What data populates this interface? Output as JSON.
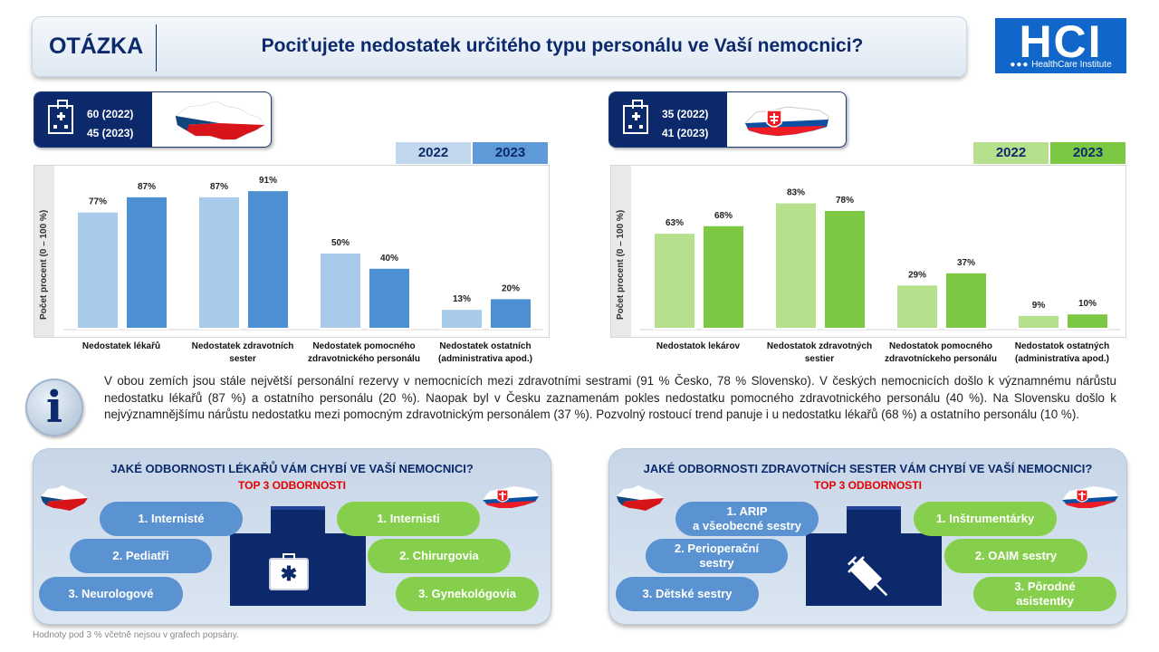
{
  "header": {
    "label": "OTÁZKA",
    "title": "Pociťujete nedostatek určitého typu personálu ve Vaší nemocnici?"
  },
  "logo": {
    "text": "HCI",
    "subtitle": "HealthCare Institute"
  },
  "cz": {
    "count_2022": "60 (2022)",
    "count_2023": "45 (2023)",
    "legend": [
      "2022",
      "2023"
    ],
    "colors": {
      "y2022": "#a8cbe9",
      "y2023": "#4c8fd3"
    }
  },
  "sk": {
    "count_2022": "35 (2022)",
    "count_2023": "41 (2023)",
    "legend": [
      "2022",
      "2023"
    ],
    "colors": {
      "y2022": "#b7e08d",
      "y2023": "#7dc843"
    }
  },
  "chart_data": [
    {
      "type": "bar",
      "ylabel": "Počet procent  (0 – 100 %)",
      "ylim": [
        0,
        100
      ],
      "categories": [
        "Nedostatek lékařů",
        "Nedostatek zdravotních sester",
        "Nedostatek pomocného zdravotnického personálu",
        "Nedostatek ostatních (administrativa apod.)"
      ],
      "category_lines": [
        [
          "Nedostatek lékařů"
        ],
        [
          "Nedostatek zdravotních",
          "sester"
        ],
        [
          "Nedostatek pomocného",
          "zdravotnického personálu"
        ],
        [
          "Nedostatek ostatních",
          "(administrativa apod.)"
        ]
      ],
      "series": [
        {
          "name": "2022",
          "values": [
            77,
            87,
            50,
            13
          ]
        },
        {
          "name": "2023",
          "values": [
            87,
            91,
            40,
            20
          ]
        }
      ],
      "labels": [
        [
          "77%",
          "87%",
          "50%",
          "13%"
        ],
        [
          "87%",
          "91%",
          "40%",
          "20%"
        ]
      ],
      "grid": false
    },
    {
      "type": "bar",
      "ylabel": "Počet procent  (0 – 100 %)",
      "ylim": [
        0,
        100
      ],
      "categories": [
        "Nedostatok lekárov",
        "Nedostatok zdravotných sestier",
        "Nedostatok pomocného zdravotníckeho personálu",
        "Nedostatok ostatných (administratíva apod.)"
      ],
      "category_lines": [
        [
          "Nedostatok lekárov"
        ],
        [
          "Nedostatok zdravotných",
          "sestier"
        ],
        [
          "Nedostatok pomocného",
          "zdravotníckeho personálu"
        ],
        [
          "Nedostatok ostatných",
          "(administratíva apod.)"
        ]
      ],
      "series": [
        {
          "name": "2022",
          "values": [
            63,
            83,
            29,
            9
          ]
        },
        {
          "name": "2023",
          "values": [
            68,
            78,
            37,
            10
          ]
        }
      ],
      "labels": [
        [
          "63%",
          "83%",
          "29%",
          "9%"
        ],
        [
          "68%",
          "78%",
          "37%",
          "10%"
        ]
      ],
      "grid": false
    }
  ],
  "info": {
    "icon": "i",
    "text": "V obou zemích jsou stále největší personální rezervy v nemocnicích mezi zdravotními sestrami (91 % Česko, 78 % Slovensko). V českých nemocnicích došlo k významnému nárůstu nedostatku lékařů (87 %) a ostatního personálu (20 %). Naopak byl v Česku zaznamenám pokles nedostatku pomocného zdravotnického personálu (40 %). Na Slovensku došlo k nejvýznamnějšímu nárůstu nedostatku mezi pomocným zdravotnickým personálem (37 %). Pozvolný rostoucí trend panuje i u nedostatku lékařů (68 %) a ostatního personálu (10 %)."
  },
  "doctors": {
    "title": "JAKÉ ODBORNOSTI LÉKAŘŮ VÁM CHYBÍ VE VAŠÍ NEMOCNICI?",
    "subtitle": "TOP 3 ODBORNOSTI",
    "cz": [
      "1. Internisté",
      "2. Pediatři",
      "3. Neurologové"
    ],
    "sk": [
      "1. Internisti",
      "2. Chirurgovia",
      "3. Gynekológovia"
    ],
    "icon": "medical-kit-icon"
  },
  "nurses": {
    "title": "JAKÉ ODBORNOSTI ZDRAVOTNÍCH SESTER VÁM CHYBÍ VE VAŠÍ NEMOCNICI?",
    "subtitle": "TOP 3 ODBORNOSTI",
    "cz": [
      [
        "1. ARIP",
        "a všeobecné sestry"
      ],
      [
        "2. Perioperační",
        "sestry"
      ],
      [
        "3. Dětské sestry"
      ]
    ],
    "sk": [
      [
        "1. Inštrumentárky"
      ],
      [
        "2. OAIM sestry"
      ],
      [
        "3. Pôrodné",
        "asistentky"
      ]
    ],
    "icon": "syringe-icon"
  },
  "footnote": "Hodnoty pod 3 % včetně  nejsou v grafech popsány."
}
